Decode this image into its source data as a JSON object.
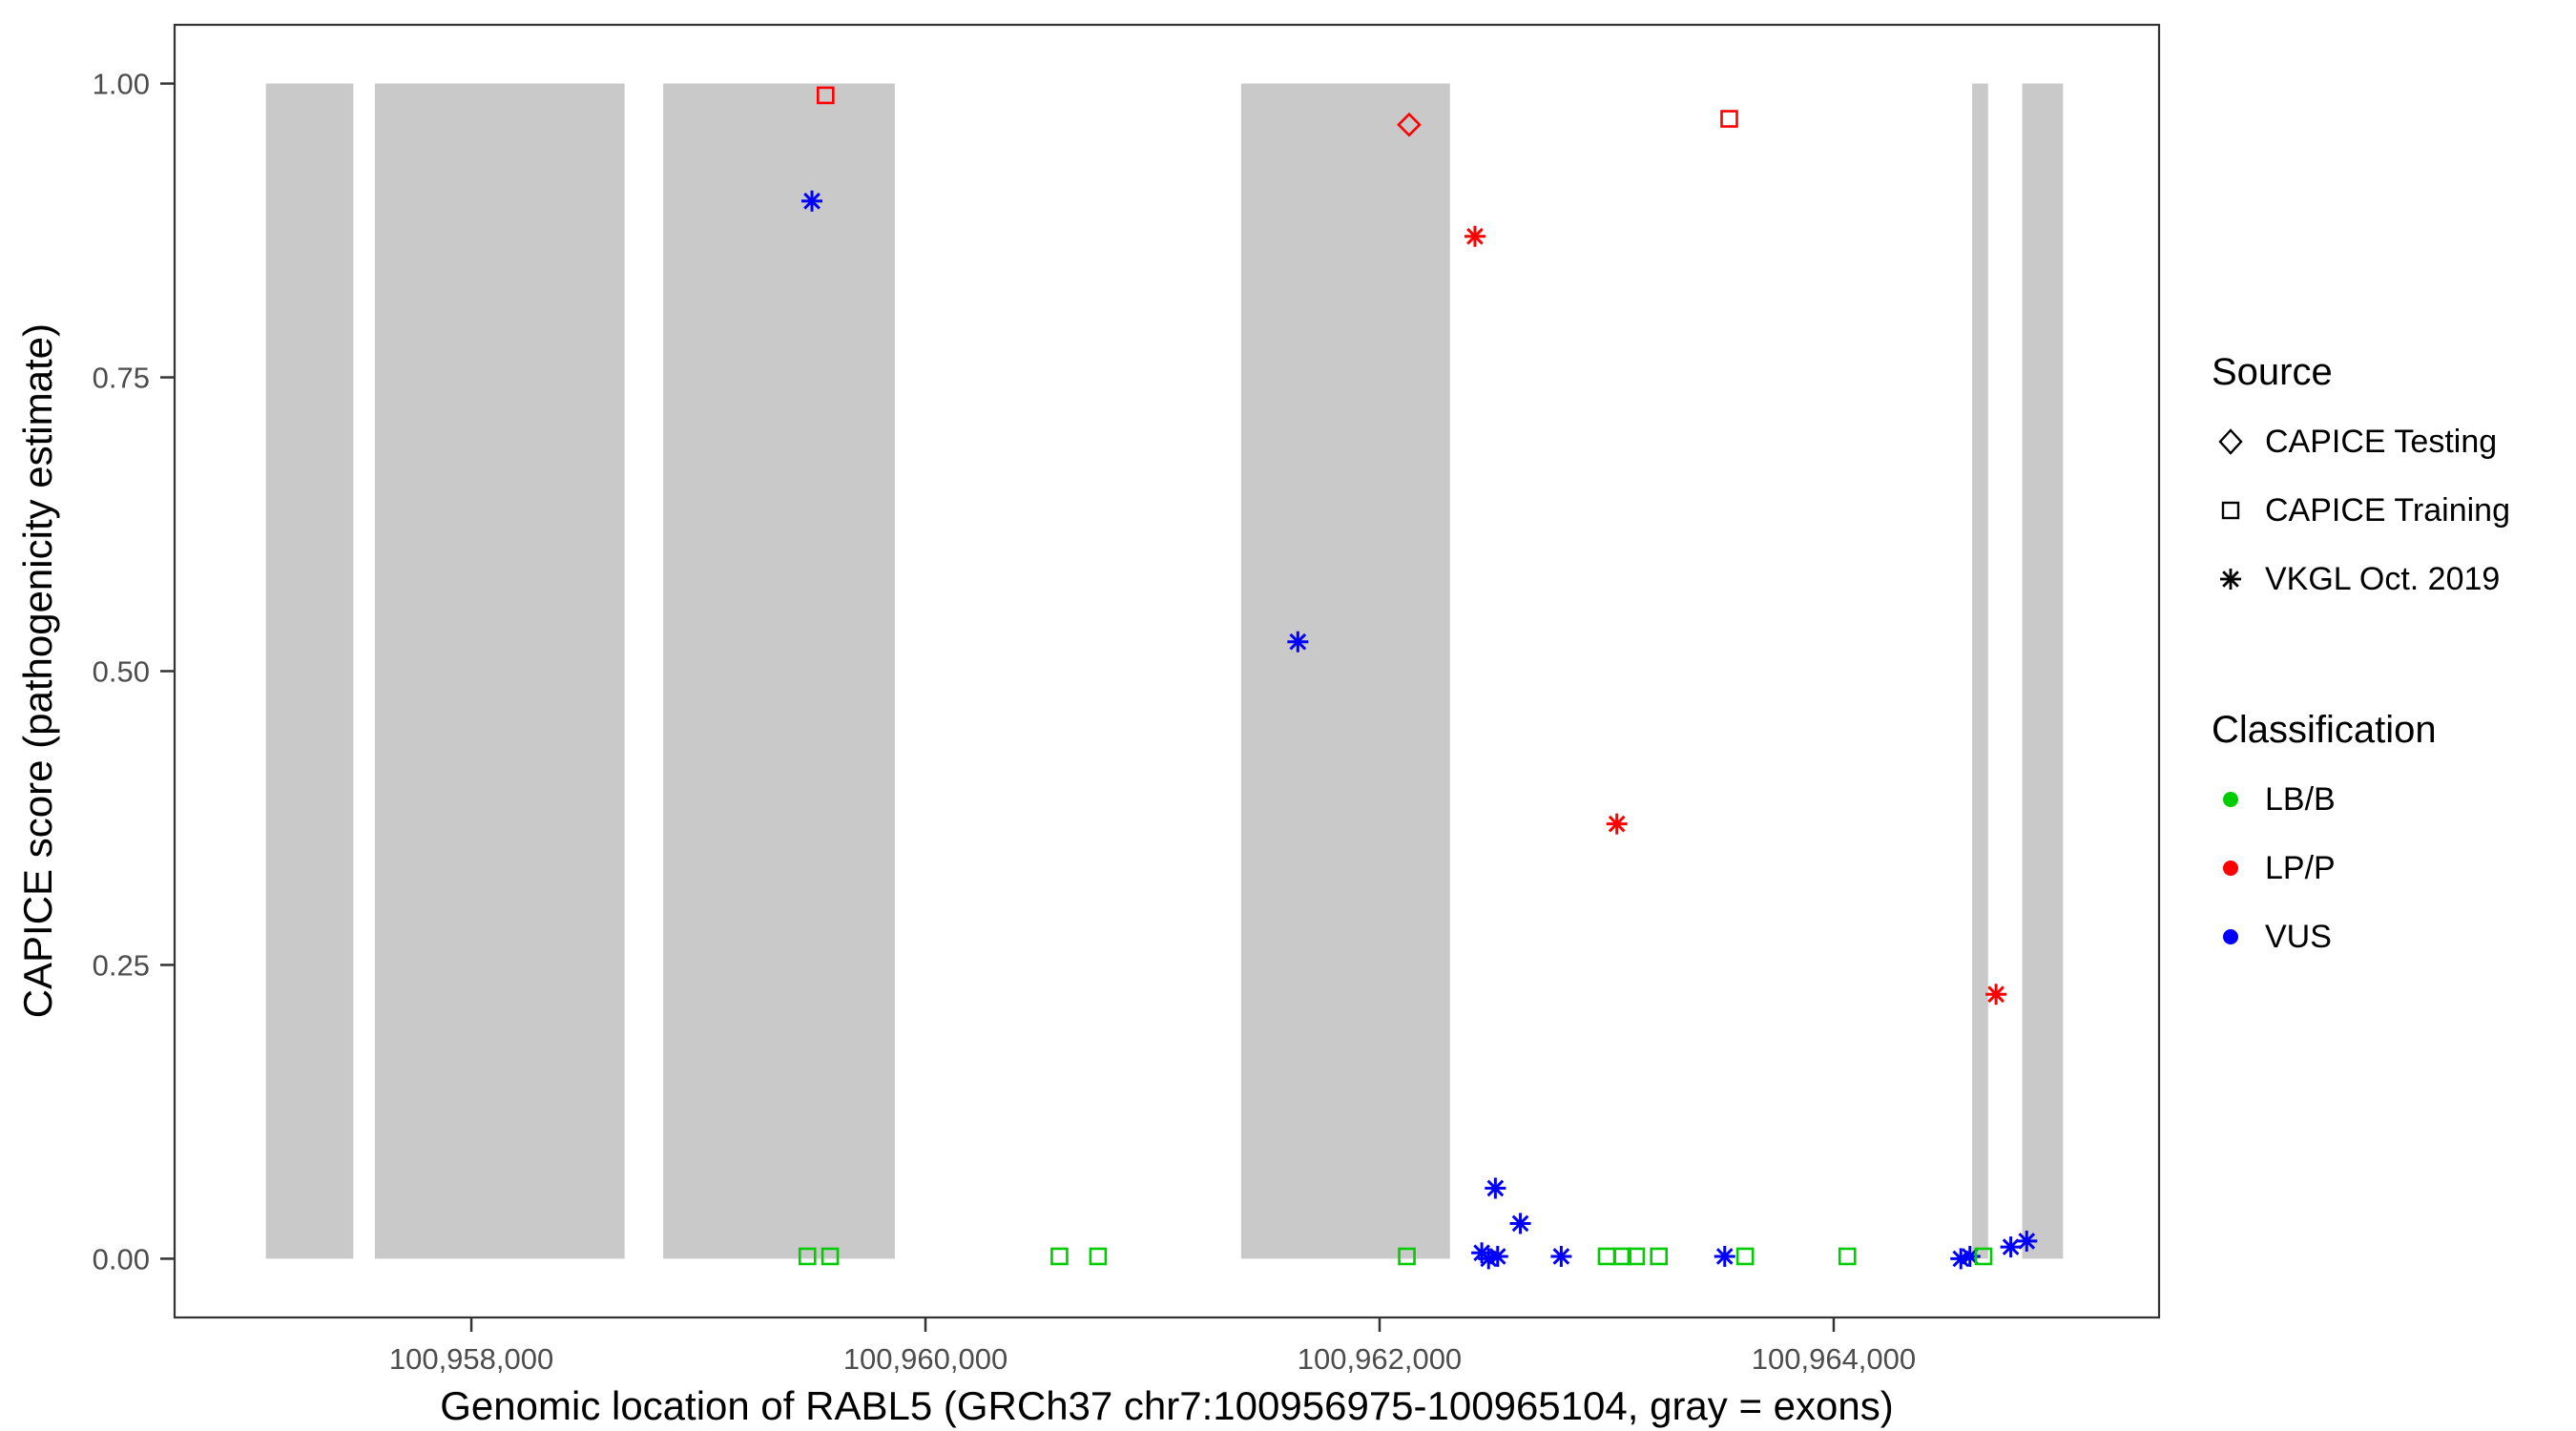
{
  "chart_data": {
    "type": "scatter",
    "title": "",
    "xlabel": "Genomic location of RABL5 (GRCh37 chr7:100956975-100965104, gray = exons)",
    "ylabel": "CAPICE score (pathogenicity estimate)",
    "xlim": [
      100956693,
      100965433
    ],
    "ylim": [
      -0.05,
      1.05
    ],
    "x_ticks": [
      {
        "value": 100958000,
        "label": "100,958,000"
      },
      {
        "value": 100960000,
        "label": "100,960,000"
      },
      {
        "value": 100962000,
        "label": "100,962,000"
      },
      {
        "value": 100964000,
        "label": "100,964,000"
      }
    ],
    "y_ticks": [
      {
        "value": 0.0,
        "label": "0.00"
      },
      {
        "value": 0.25,
        "label": "0.25"
      },
      {
        "value": 0.5,
        "label": "0.50"
      },
      {
        "value": 0.75,
        "label": "0.75"
      },
      {
        "value": 1.0,
        "label": "1.00"
      }
    ],
    "exon_color": "#c9c9c9",
    "exons": [
      [
        100957095,
        100957480
      ],
      [
        100957575,
        100958675
      ],
      [
        100958845,
        100959865
      ],
      [
        100961390,
        100962310
      ],
      [
        100964610,
        100964680
      ],
      [
        100964830,
        100965010
      ]
    ],
    "shapes": {
      "CAPICE Testing": "diamond",
      "CAPICE Training": "square",
      "VKGL Oct. 2019": "asterisk"
    },
    "colors": {
      "LB/B": "#00cc00",
      "LP/P": "#ff0000",
      "VUS": "#0000ff"
    },
    "points": [
      {
        "pos": 100959500,
        "score": 0.9,
        "source": "VKGL Oct. 2019",
        "classification": "VUS"
      },
      {
        "pos": 100959560,
        "score": 0.99,
        "source": "CAPICE Training",
        "classification": "LP/P"
      },
      {
        "pos": 100959480,
        "score": 0.002,
        "source": "CAPICE Training",
        "classification": "LB/B"
      },
      {
        "pos": 100959580,
        "score": 0.002,
        "source": "CAPICE Training",
        "classification": "LB/B"
      },
      {
        "pos": 100960590,
        "score": 0.002,
        "source": "CAPICE Training",
        "classification": "LB/B"
      },
      {
        "pos": 100960760,
        "score": 0.002,
        "source": "CAPICE Training",
        "classification": "LB/B"
      },
      {
        "pos": 100961640,
        "score": 0.525,
        "source": "VKGL Oct. 2019",
        "classification": "VUS"
      },
      {
        "pos": 100962120,
        "score": 0.002,
        "source": "CAPICE Training",
        "classification": "LB/B"
      },
      {
        "pos": 100962130,
        "score": 0.965,
        "source": "CAPICE Testing",
        "classification": "LP/P"
      },
      {
        "pos": 100962420,
        "score": 0.87,
        "source": "VKGL Oct. 2019",
        "classification": "LP/P"
      },
      {
        "pos": 100962450,
        "score": 0.005,
        "source": "VKGL Oct. 2019",
        "classification": "VUS"
      },
      {
        "pos": 100962480,
        "score": 0.0,
        "source": "VKGL Oct. 2019",
        "classification": "VUS"
      },
      {
        "pos": 100962520,
        "score": 0.002,
        "source": "VKGL Oct. 2019",
        "classification": "VUS"
      },
      {
        "pos": 100962510,
        "score": 0.06,
        "source": "VKGL Oct. 2019",
        "classification": "VUS"
      },
      {
        "pos": 100962620,
        "score": 0.03,
        "source": "VKGL Oct. 2019",
        "classification": "VUS"
      },
      {
        "pos": 100962800,
        "score": 0.002,
        "source": "VKGL Oct. 2019",
        "classification": "VUS"
      },
      {
        "pos": 100963000,
        "score": 0.002,
        "source": "CAPICE Training",
        "classification": "LB/B"
      },
      {
        "pos": 100963070,
        "score": 0.002,
        "source": "CAPICE Training",
        "classification": "LB/B"
      },
      {
        "pos": 100963130,
        "score": 0.002,
        "source": "CAPICE Training",
        "classification": "LB/B"
      },
      {
        "pos": 100963230,
        "score": 0.002,
        "source": "CAPICE Training",
        "classification": "LB/B"
      },
      {
        "pos": 100963045,
        "score": 0.37,
        "source": "VKGL Oct. 2019",
        "classification": "LP/P"
      },
      {
        "pos": 100963520,
        "score": 0.002,
        "source": "VKGL Oct. 2019",
        "classification": "VUS"
      },
      {
        "pos": 100963540,
        "score": 0.97,
        "source": "CAPICE Training",
        "classification": "LP/P"
      },
      {
        "pos": 100963610,
        "score": 0.002,
        "source": "CAPICE Training",
        "classification": "LB/B"
      },
      {
        "pos": 100964060,
        "score": 0.002,
        "source": "CAPICE Training",
        "classification": "LB/B"
      },
      {
        "pos": 100964560,
        "score": 0.0,
        "source": "VKGL Oct. 2019",
        "classification": "VUS"
      },
      {
        "pos": 100964600,
        "score": 0.002,
        "source": "VKGL Oct. 2019",
        "classification": "VUS"
      },
      {
        "pos": 100964660,
        "score": 0.002,
        "source": "CAPICE Training",
        "classification": "LB/B"
      },
      {
        "pos": 100964715,
        "score": 0.225,
        "source": "VKGL Oct. 2019",
        "classification": "LP/P"
      },
      {
        "pos": 100964780,
        "score": 0.01,
        "source": "VKGL Oct. 2019",
        "classification": "VUS"
      },
      {
        "pos": 100964850,
        "score": 0.015,
        "source": "VKGL Oct. 2019",
        "classification": "VUS"
      }
    ],
    "legend": {
      "source": {
        "title": "Source",
        "items": [
          {
            "label": "CAPICE Testing",
            "shape": "diamond"
          },
          {
            "label": "CAPICE Training",
            "shape": "square"
          },
          {
            "label": "VKGL Oct. 2019",
            "shape": "asterisk"
          }
        ]
      },
      "classification": {
        "title": "Classification",
        "items": [
          {
            "label": "LB/B",
            "color": "#00cc00"
          },
          {
            "label": "LP/P",
            "color": "#ff0000"
          },
          {
            "label": "VUS",
            "color": "#0000ff"
          }
        ]
      }
    }
  }
}
